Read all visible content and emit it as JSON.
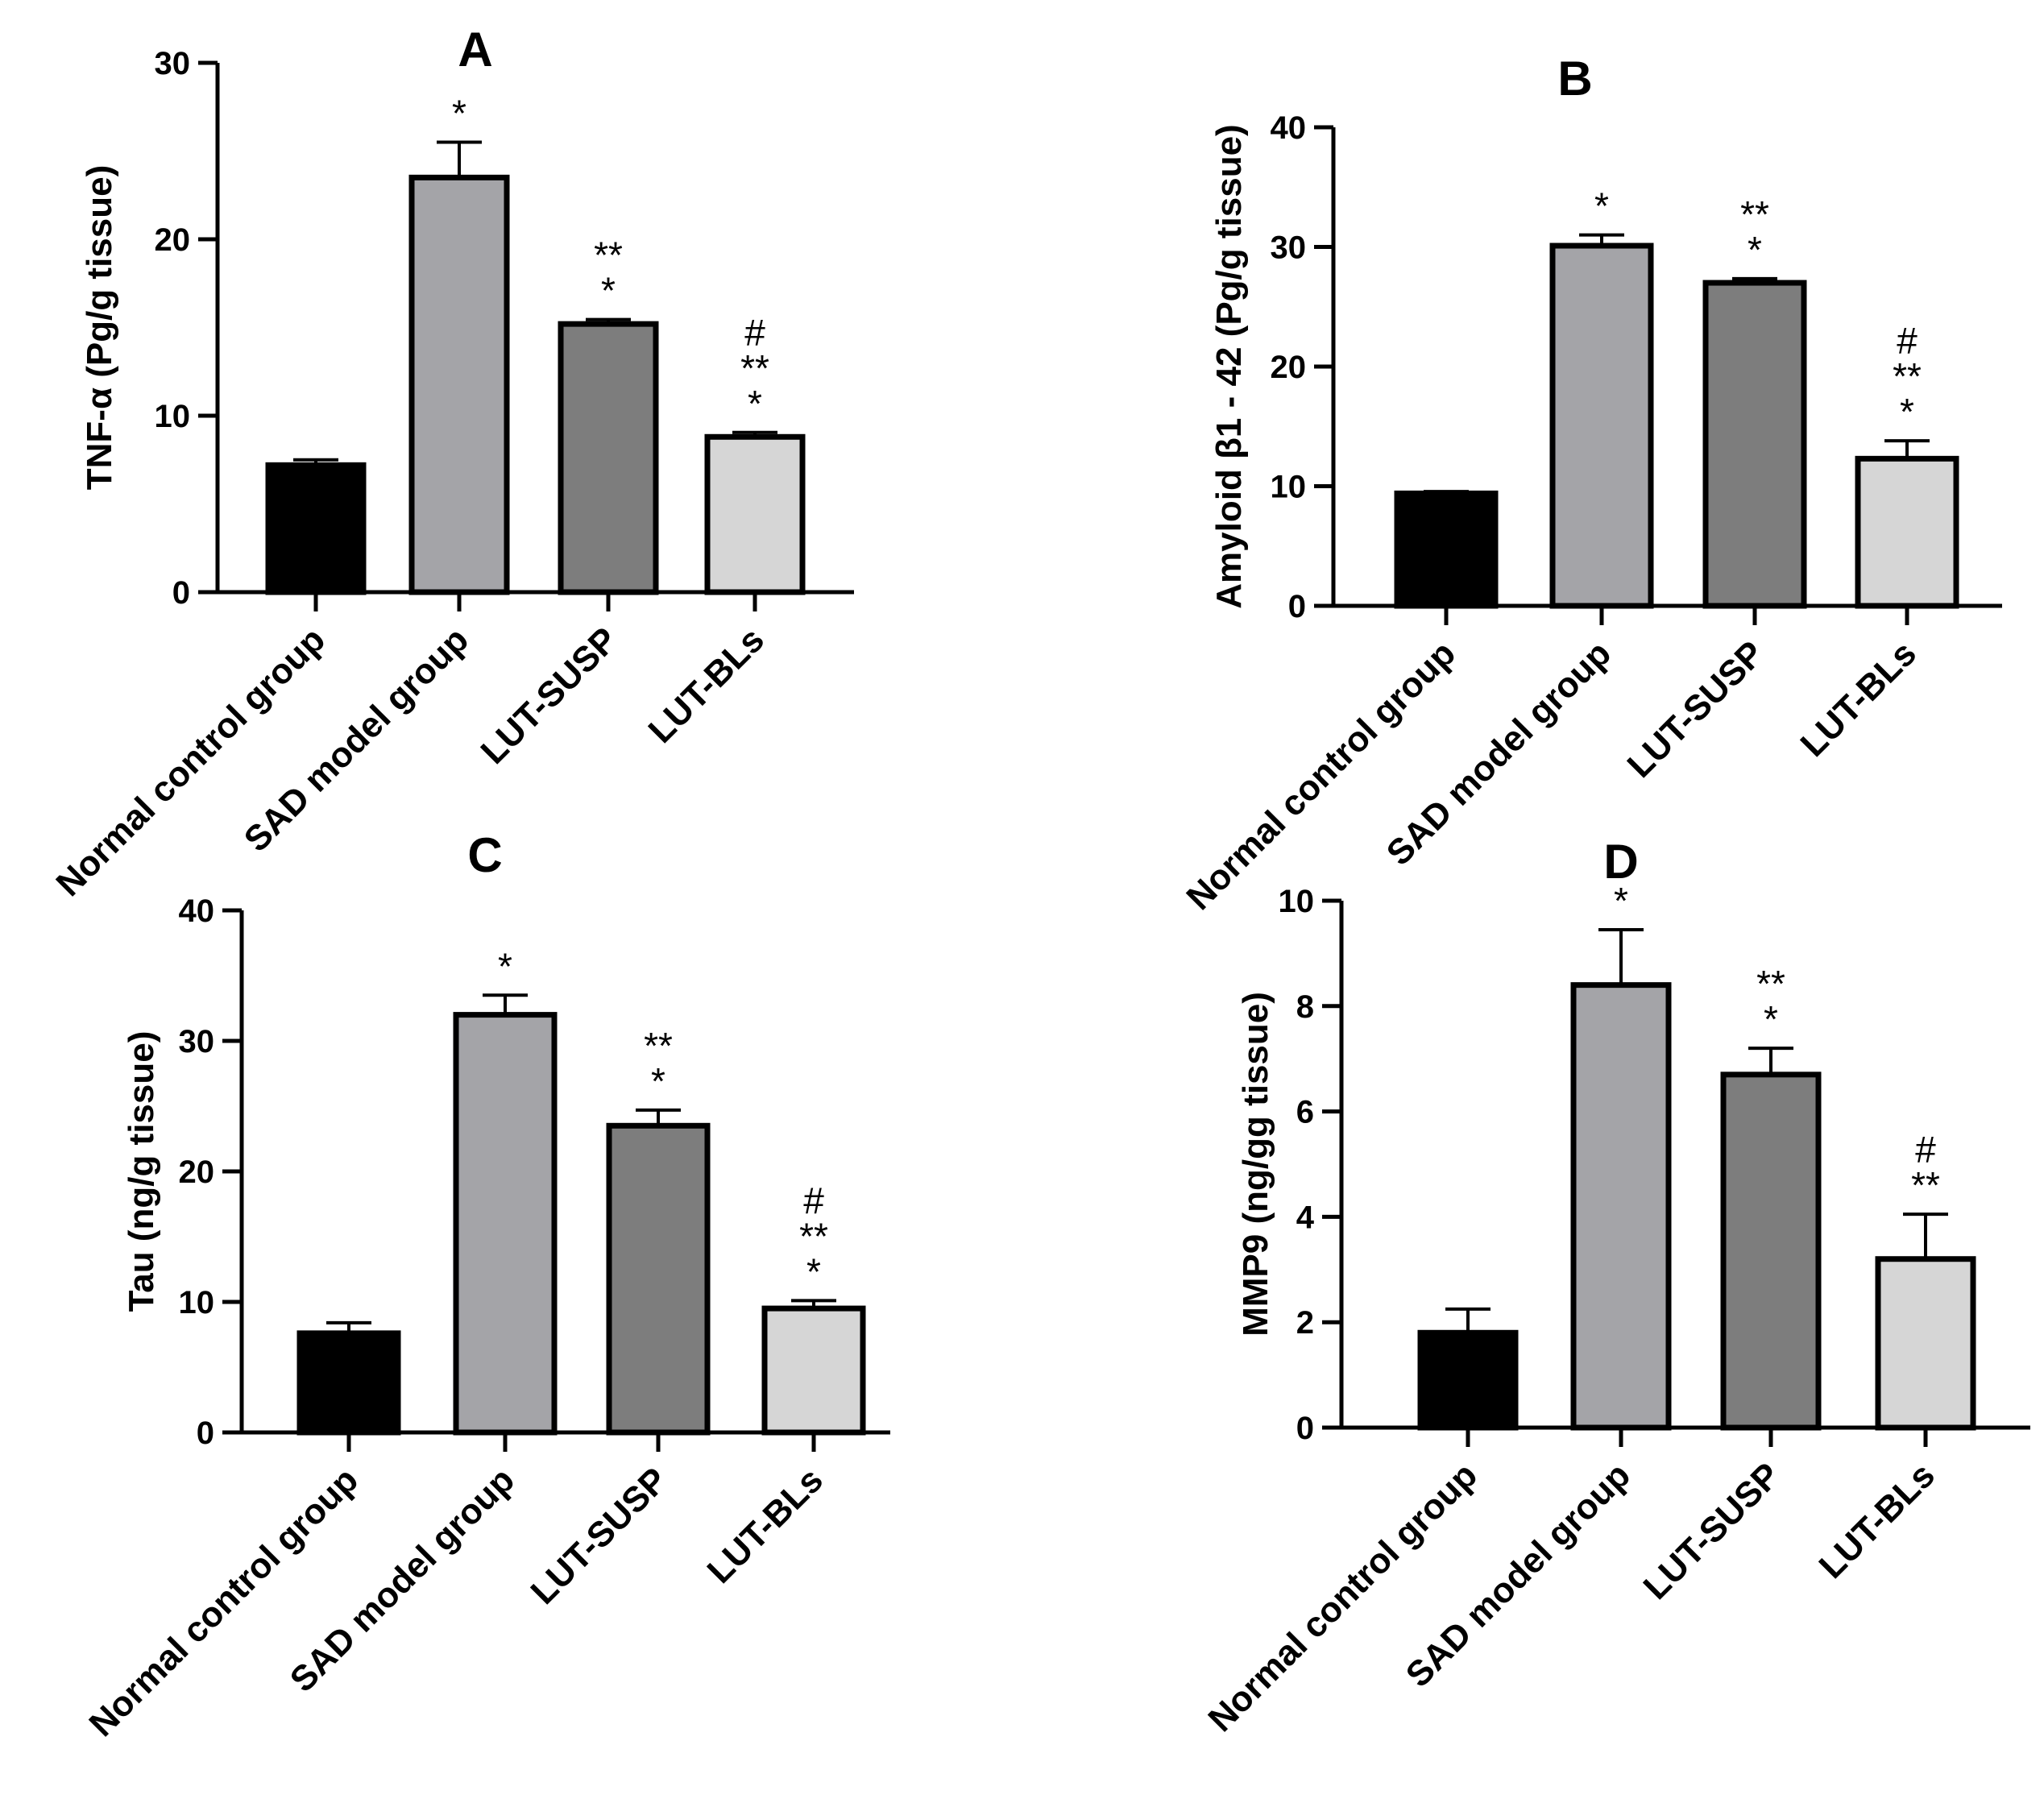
{
  "chart_data": [
    {
      "type": "bar",
      "panel": "A",
      "title": "A",
      "ylabel": "TNF-α (Pg/g tissue)",
      "categories": [
        "Normal control group",
        "SAD model group",
        "LUT-SUSP",
        "LUT-BLs"
      ],
      "values": [
        7.2,
        23.5,
        15.2,
        8.8
      ],
      "errors": [
        0.3,
        2.0,
        0.25,
        0.25
      ],
      "colors": [
        "#000000",
        "#a4a4a8",
        "#7d7d7d",
        "#d6d6d6"
      ],
      "annotations": [
        [],
        [
          "*"
        ],
        [
          "**",
          "*"
        ],
        [
          "#",
          "**",
          "*"
        ]
      ],
      "ylim": [
        0,
        30
      ],
      "yticks": [
        0,
        10,
        20,
        30
      ]
    },
    {
      "type": "bar",
      "panel": "B",
      "title": "B",
      "ylabel": "Amyloid β1 - 42 (Pg/g tissue)",
      "categories": [
        "Normal control group",
        "SAD model group",
        "LUT-SUSP",
        "LUT-BLs"
      ],
      "values": [
        9.4,
        30.1,
        27.0,
        12.3
      ],
      "errors": [
        0.15,
        0.9,
        0.35,
        1.5
      ],
      "colors": [
        "#000000",
        "#a4a4a8",
        "#7d7d7d",
        "#d6d6d6"
      ],
      "annotations": [
        [],
        [
          "*"
        ],
        [
          "**",
          "*"
        ],
        [
          "#",
          "**",
          "*"
        ]
      ],
      "ylim": [
        0,
        40
      ],
      "yticks": [
        0,
        10,
        20,
        30,
        40
      ]
    },
    {
      "type": "bar",
      "panel": "C",
      "title": "C",
      "ylabel": "Tau (ng/g tissue)",
      "categories": [
        "Normal control group",
        "SAD model group",
        "LUT-SUSP",
        "LUT-BLs"
      ],
      "values": [
        7.6,
        32.0,
        23.5,
        9.5
      ],
      "errors": [
        0.8,
        1.5,
        1.2,
        0.6
      ],
      "colors": [
        "#000000",
        "#a4a4a8",
        "#7d7d7d",
        "#d6d6d6"
      ],
      "annotations": [
        [],
        [
          "*"
        ],
        [
          "**",
          "*"
        ],
        [
          "#",
          "**",
          "*"
        ]
      ],
      "ylim": [
        0,
        40
      ],
      "yticks": [
        0,
        10,
        20,
        30,
        40
      ]
    },
    {
      "type": "bar",
      "panel": "D",
      "title": "D",
      "ylabel": "MMP9 (ng/gg tissue)",
      "categories": [
        "Normal control group",
        "SAD model group",
        "LUT-SUSP",
        "LUT-BLs"
      ],
      "values": [
        1.8,
        8.4,
        6.7,
        3.2
      ],
      "errors": [
        0.45,
        1.05,
        0.5,
        0.85
      ],
      "colors": [
        "#000000",
        "#a4a4a8",
        "#7d7d7d",
        "#d6d6d6"
      ],
      "annotations": [
        [],
        [
          "*"
        ],
        [
          "**",
          "*"
        ],
        [
          "#",
          "**"
        ]
      ],
      "ylim": [
        0,
        10
      ],
      "yticks": [
        0,
        2,
        4,
        6,
        8,
        10
      ]
    }
  ]
}
